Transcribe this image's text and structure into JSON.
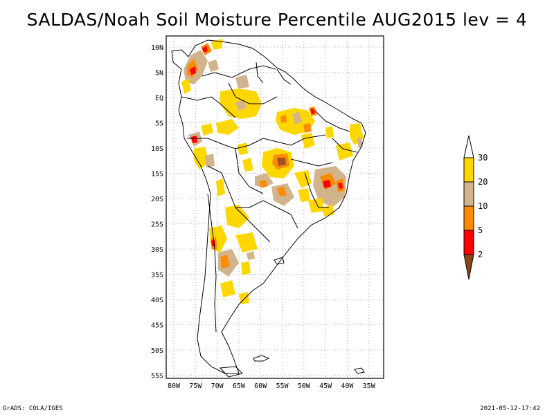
{
  "title": "SALDAS/Noah Soil Moisture Percentile AUG2015 lev = 4",
  "footer": {
    "left": "GrADS: COLA/IGES",
    "right": "2021-05-12-17:42"
  },
  "map": {
    "lon_range": [
      -81,
      -34
    ],
    "lat_range": [
      -56,
      11
    ],
    "lon_ticks": [
      "80W",
      "75W",
      "70W",
      "65W",
      "60W",
      "55W",
      "50W",
      "45W",
      "40W",
      "35W"
    ],
    "lat_ticks": [
      "10N",
      "5N",
      "EQ",
      "5S",
      "10S",
      "15S",
      "20S",
      "25S",
      "30S",
      "35S",
      "40S",
      "45S",
      "50S",
      "55S"
    ],
    "grid": "dotted"
  },
  "colorbar": {
    "levels": [
      "2",
      "5",
      "10",
      "20",
      "30"
    ],
    "colors": {
      "below_2": "#8B4513",
      "2_5": "#FF0000",
      "5_10": "#FF8C00",
      "10_20": "#D2B48C",
      "20_30": "#FFD700",
      "above_30": "#FFFFFF"
    }
  }
}
